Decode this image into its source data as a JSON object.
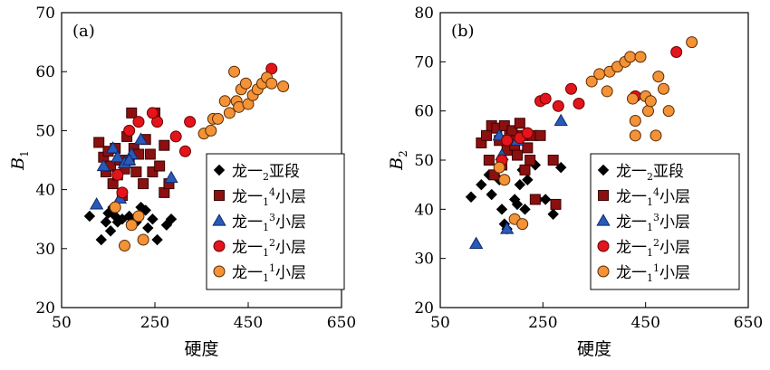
{
  "figure": {
    "legend_order": [
      "m2",
      "m14",
      "m13",
      "m12",
      "m11"
    ],
    "series_styles": {
      "m2": {
        "marker": "diamond",
        "fill": "#000000",
        "stroke": "#000000"
      },
      "m14": {
        "marker": "square",
        "fill": "#8b1010",
        "stroke": "#3a0000"
      },
      "m13": {
        "marker": "triangle",
        "fill": "#2a5ab8",
        "stroke": "#0c2a6a"
      },
      "m12": {
        "marker": "circle",
        "fill": "#e3141b",
        "stroke": "#6a0000"
      },
      "m11": {
        "marker": "circle",
        "fill": "#f39237",
        "stroke": "#5a2a00"
      }
    }
  },
  "chart_data": [
    {
      "type": "scatter",
      "panel_label": "(a)",
      "xlabel": "硬度",
      "ylabel": "B",
      "ylabel_sub": "1",
      "xlim": [
        50,
        650
      ],
      "ylim": [
        20,
        70
      ],
      "xticks": [
        "50",
        "250",
        "450",
        "650"
      ],
      "yticks": [
        "20",
        "30",
        "40",
        "50",
        "60",
        "70"
      ],
      "legend_position": "bottom-right",
      "series": [
        {
          "key": "m2",
          "name": "龙一2亚段",
          "label_parts": [
            "龙一",
            "2",
            "亚段"
          ],
          "label_script": "sub",
          "points": [
            [
              110,
              35.5
            ],
            [
              135,
              31.5
            ],
            [
              145,
              34.5
            ],
            [
              150,
              36
            ],
            [
              155,
              33
            ],
            [
              160,
              37
            ],
            [
              165,
              35.5
            ],
            [
              170,
              34.5
            ],
            [
              180,
              35
            ],
            [
              195,
              35.5
            ],
            [
              200,
              34.5
            ],
            [
              210,
              34.5
            ],
            [
              220,
              37
            ],
            [
              230,
              36.5
            ],
            [
              235,
              33.5
            ],
            [
              245,
              35
            ],
            [
              255,
              31.5
            ],
            [
              275,
              34
            ],
            [
              285,
              35
            ]
          ]
        },
        {
          "key": "m14",
          "name": "龙一14小层",
          "label_parts": [
            "龙一",
            "1",
            "4小层"
          ],
          "label_script": "sup-sub",
          "points": [
            [
              130,
              48
            ],
            [
              140,
              45.5
            ],
            [
              145,
              43
            ],
            [
              150,
              46.5
            ],
            [
              155,
              44
            ],
            [
              160,
              41
            ],
            [
              165,
              47
            ],
            [
              170,
              42.5
            ],
            [
              175,
              45
            ],
            [
              180,
              39
            ],
            [
              185,
              43.5
            ],
            [
              190,
              49
            ],
            [
              195,
              45
            ],
            [
              200,
              53
            ],
            [
              205,
              47
            ],
            [
              210,
              43
            ],
            [
              215,
              46
            ],
            [
              225,
              41
            ],
            [
              230,
              48.5
            ],
            [
              240,
              46
            ],
            [
              245,
              43
            ],
            [
              250,
              53
            ],
            [
              260,
              44
            ],
            [
              270,
              47.5
            ],
            [
              270,
              39.5
            ],
            [
              280,
              41
            ]
          ]
        },
        {
          "key": "m13",
          "name": "龙一13小层",
          "label_parts": [
            "龙一",
            "1",
            "3小层"
          ],
          "label_script": "sup-sub",
          "points": [
            [
              125,
              37.5
            ],
            [
              140,
              44
            ],
            [
              160,
              47
            ],
            [
              170,
              45.5
            ],
            [
              185,
              44.5
            ],
            [
              200,
              46
            ],
            [
              220,
              48.5
            ],
            [
              195,
              45
            ],
            [
              285,
              42
            ],
            [
              175,
              38.5
            ]
          ]
        },
        {
          "key": "m12",
          "name": "龙一12小层",
          "label_parts": [
            "龙一",
            "1",
            "2小层"
          ],
          "label_script": "sup-sub",
          "points": [
            [
              170,
              42.5
            ],
            [
              180,
              39.5
            ],
            [
              195,
              50
            ],
            [
              215,
              51.5
            ],
            [
              255,
              51.5
            ],
            [
              295,
              49
            ],
            [
              325,
              51.5
            ],
            [
              245,
              53
            ],
            [
              500,
              60.5
            ],
            [
              315,
              46.5
            ]
          ]
        },
        {
          "key": "m11",
          "name": "龙一11小层",
          "label_parts": [
            "龙一",
            "1",
            "1小层"
          ],
          "label_script": "sup-sub",
          "points": [
            [
              165,
              37
            ],
            [
              185,
              30.5
            ],
            [
              200,
              34
            ],
            [
              215,
              35.5
            ],
            [
              225,
              31.5
            ],
            [
              355,
              49.5
            ],
            [
              370,
              50
            ],
            [
              375,
              52
            ],
            [
              385,
              52
            ],
            [
              400,
              55
            ],
            [
              410,
              53
            ],
            [
              420,
              60
            ],
            [
              425,
              55
            ],
            [
              430,
              54
            ],
            [
              435,
              57
            ],
            [
              445,
              58
            ],
            [
              450,
              54.5
            ],
            [
              460,
              56
            ],
            [
              470,
              57
            ],
            [
              480,
              58
            ],
            [
              490,
              59
            ],
            [
              500,
              58
            ],
            [
              525,
              57.5
            ]
          ]
        }
      ]
    },
    {
      "type": "scatter",
      "panel_label": "(b)",
      "xlabel": "硬度",
      "ylabel": "B",
      "ylabel_sub": "2",
      "xlim": [
        50,
        650
      ],
      "ylim": [
        20,
        80
      ],
      "xticks": [
        "50",
        "250",
        "450",
        "650"
      ],
      "yticks": [
        "20",
        "30",
        "40",
        "50",
        "60",
        "70",
        "80"
      ],
      "legend_position": "bottom-right",
      "series": [
        {
          "key": "m2",
          "name": "龙一2亚段",
          "label_parts": [
            "龙一",
            "2",
            "亚段"
          ],
          "label_script": "sub",
          "points": [
            [
              110,
              42.5
            ],
            [
              130,
              45
            ],
            [
              145,
              47
            ],
            [
              150,
              43
            ],
            [
              165,
              46
            ],
            [
              170,
              40
            ],
            [
              175,
              37
            ],
            [
              180,
              36
            ],
            [
              195,
              42
            ],
            [
              200,
              41
            ],
            [
              205,
              45
            ],
            [
              210,
              48
            ],
            [
              215,
              40
            ],
            [
              220,
              46
            ],
            [
              235,
              49
            ],
            [
              240,
              42
            ],
            [
              255,
              42
            ],
            [
              270,
              39
            ],
            [
              285,
              48.5
            ]
          ]
        },
        {
          "key": "m14",
          "name": "龙一14小层",
          "label_parts": [
            "龙一",
            "1",
            "4小层"
          ],
          "label_script": "sup-sub",
          "points": [
            [
              130,
              53.5
            ],
            [
              140,
              55
            ],
            [
              145,
              50
            ],
            [
              150,
              57
            ],
            [
              155,
              47
            ],
            [
              160,
              56.5
            ],
            [
              165,
              54
            ],
            [
              170,
              49
            ],
            [
              175,
              57
            ],
            [
              180,
              52
            ],
            [
              185,
              55
            ],
            [
              190,
              56
            ],
            [
              195,
              53
            ],
            [
              200,
              51
            ],
            [
              205,
              57.5
            ],
            [
              210,
              55
            ],
            [
              215,
              48
            ],
            [
              220,
              52.5
            ],
            [
              225,
              50
            ],
            [
              230,
              55
            ],
            [
              235,
              42
            ],
            [
              245,
              55
            ],
            [
              270,
              50
            ],
            [
              275,
              41
            ]
          ]
        },
        {
          "key": "m13",
          "name": "龙一13小层",
          "label_parts": [
            "龙一",
            "1",
            "3小层"
          ],
          "label_script": "sup-sub",
          "points": [
            [
              120,
              33
            ],
            [
              165,
              55
            ],
            [
              170,
              51
            ],
            [
              180,
              36
            ],
            [
              185,
              54
            ],
            [
              200,
              54
            ],
            [
              285,
              58
            ]
          ]
        },
        {
          "key": "m12",
          "name": "龙一12小层",
          "label_parts": [
            "龙一",
            "1",
            "2小层"
          ],
          "label_script": "sup-sub",
          "points": [
            [
              170,
              50
            ],
            [
              180,
              54
            ],
            [
              205,
              54.5
            ],
            [
              220,
              55.5
            ],
            [
              245,
              62
            ],
            [
              255,
              62.5
            ],
            [
              280,
              61
            ],
            [
              305,
              64.5
            ],
            [
              320,
              61.5
            ],
            [
              430,
              63
            ],
            [
              510,
              72
            ]
          ]
        },
        {
          "key": "m11",
          "name": "龙一11小层",
          "label_parts": [
            "龙一",
            "1",
            "1小层"
          ],
          "label_script": "sup-sub",
          "points": [
            [
              165,
              48.5
            ],
            [
              175,
              46
            ],
            [
              195,
              38
            ],
            [
              210,
              37
            ],
            [
              345,
              66
            ],
            [
              360,
              67.5
            ],
            [
              375,
              64
            ],
            [
              380,
              68
            ],
            [
              395,
              69
            ],
            [
              410,
              70
            ],
            [
              420,
              71
            ],
            [
              425,
              62.5
            ],
            [
              430,
              58
            ],
            [
              440,
              71
            ],
            [
              450,
              63
            ],
            [
              455,
              60
            ],
            [
              460,
              62
            ],
            [
              470,
              55
            ],
            [
              475,
              67
            ],
            [
              485,
              64.5
            ],
            [
              495,
              60
            ],
            [
              430,
              55
            ],
            [
              540,
              74
            ]
          ]
        }
      ]
    }
  ]
}
